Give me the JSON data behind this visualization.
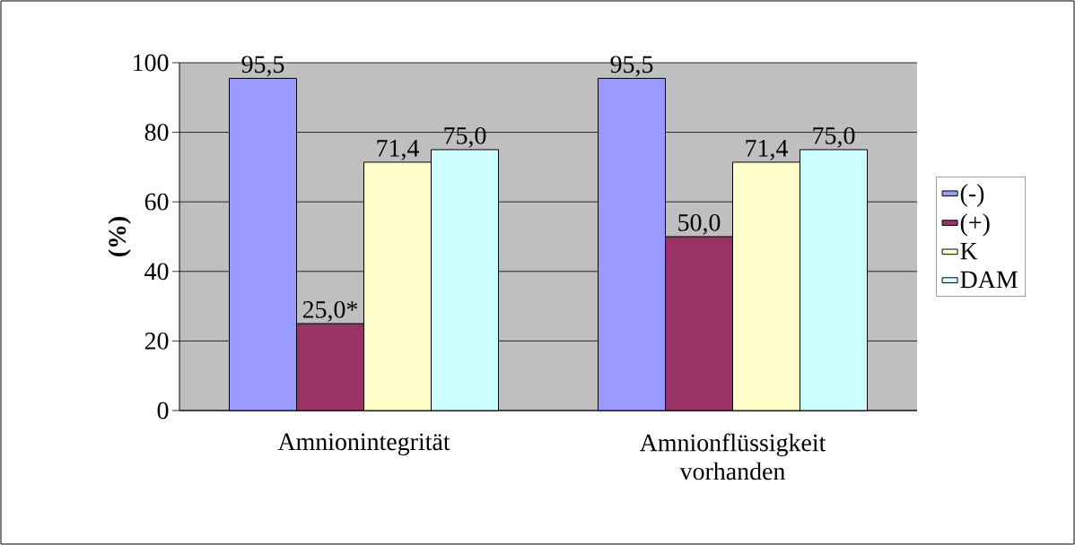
{
  "chart_data": {
    "type": "bar",
    "ylabel": "(%)",
    "categories": [
      "Amnionintegrität",
      "Amnionflüssigkeit vorhanden"
    ],
    "series": [
      {
        "name": "(-)",
        "color": "#9999ff",
        "values": [
          95.5,
          95.5
        ],
        "value_labels": [
          "95,5",
          "95,5"
        ]
      },
      {
        "name": "(+)",
        "color": "#993366",
        "values": [
          25.0,
          50.0
        ],
        "value_labels": [
          "25,0*",
          "50,0"
        ]
      },
      {
        "name": "K",
        "color": "#ffffcc",
        "values": [
          71.4,
          71.4
        ],
        "value_labels": [
          "71,4",
          "71,4"
        ]
      },
      {
        "name": "DAM",
        "color": "#ccffff",
        "values": [
          75.0,
          75.0
        ],
        "value_labels": [
          "75,0",
          "75,0"
        ]
      }
    ],
    "ylim": [
      0,
      100
    ],
    "yticks": [
      0,
      20,
      40,
      60,
      80,
      100
    ],
    "grid": "y",
    "legend": "right"
  }
}
